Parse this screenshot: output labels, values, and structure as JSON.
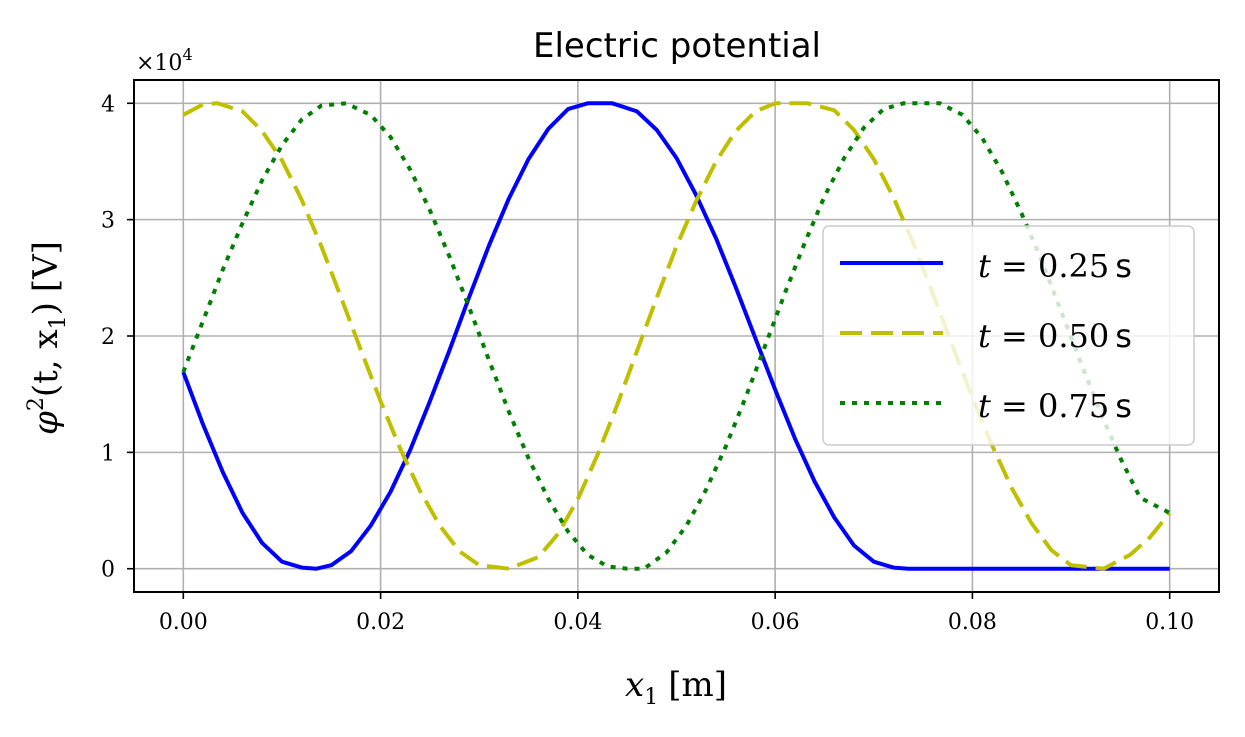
{
  "chart_data": {
    "type": "line",
    "title": "Electric potential",
    "xlabel": {
      "symbol": "x",
      "sub": "1",
      "unit": "[m]"
    },
    "ylabel": {
      "symbol": "φ",
      "sup": "2",
      "args": "(t, x",
      "argsub": "1",
      "argclose": ")",
      "unit": "[V]"
    },
    "xlim": [
      -0.005,
      0.105
    ],
    "ylim": [
      -0.2,
      4.2
    ],
    "y_scale_factor": {
      "base": "×10",
      "exp": "4"
    },
    "x_ticks": [
      0.0,
      0.02,
      0.04,
      0.06,
      0.08,
      0.1
    ],
    "x_tick_labels": [
      "0.00",
      "0.02",
      "0.04",
      "0.06",
      "0.08",
      "0.10"
    ],
    "y_ticks": [
      0,
      1,
      2,
      3,
      4
    ],
    "y_tick_labels": [
      "0",
      "1",
      "2",
      "3",
      "4"
    ],
    "grid": true,
    "legend_position": "center-right",
    "series": [
      {
        "name": "t = 0.25 s",
        "label_var": "t",
        "label_eq": " = 0.25",
        "label_unit": "s",
        "color": "#0000ff",
        "style": "solid",
        "x": [
          0.0,
          0.002,
          0.004,
          0.006,
          0.008,
          0.01,
          0.012,
          0.0135,
          0.015,
          0.017,
          0.019,
          0.021,
          0.023,
          0.025,
          0.027,
          0.029,
          0.031,
          0.033,
          0.035,
          0.037,
          0.039,
          0.041,
          0.0435,
          0.046,
          0.048,
          0.05,
          0.052,
          0.054,
          0.056,
          0.058,
          0.06,
          0.062,
          0.064,
          0.066,
          0.068,
          0.07,
          0.072,
          0.0735,
          0.08,
          0.09,
          0.1
        ],
        "y": [
          1.69,
          1.24,
          0.83,
          0.48,
          0.22,
          0.06,
          0.01,
          0.0,
          0.03,
          0.15,
          0.37,
          0.66,
          1.02,
          1.44,
          1.88,
          2.34,
          2.78,
          3.18,
          3.52,
          3.78,
          3.95,
          4.0,
          4.0,
          3.93,
          3.77,
          3.53,
          3.21,
          2.84,
          2.42,
          1.98,
          1.54,
          1.12,
          0.75,
          0.44,
          0.2,
          0.06,
          0.01,
          0.0,
          0.0,
          0.0,
          0.0
        ]
      },
      {
        "name": "t = 0.50 s",
        "label_var": "t",
        "label_eq": " = 0.50",
        "label_unit": "s",
        "color": "#bfbf00",
        "style": "dashed",
        "x": [
          0.0,
          0.002,
          0.0035,
          0.006,
          0.008,
          0.01,
          0.012,
          0.014,
          0.016,
          0.018,
          0.02,
          0.022,
          0.024,
          0.026,
          0.028,
          0.03,
          0.033,
          0.036,
          0.038,
          0.04,
          0.042,
          0.044,
          0.046,
          0.048,
          0.05,
          0.052,
          0.054,
          0.056,
          0.058,
          0.06,
          0.0633,
          0.066,
          0.068,
          0.07,
          0.072,
          0.074,
          0.076,
          0.078,
          0.08,
          0.082,
          0.084,
          0.086,
          0.088,
          0.09,
          0.0933,
          0.096,
          0.098,
          0.1
        ],
        "y": [
          3.9,
          3.99,
          4.0,
          3.93,
          3.76,
          3.51,
          3.17,
          2.77,
          2.33,
          1.88,
          1.44,
          1.03,
          0.67,
          0.37,
          0.15,
          0.03,
          0.0,
          0.1,
          0.3,
          0.6,
          0.98,
          1.41,
          1.87,
          2.33,
          2.77,
          3.16,
          3.5,
          3.76,
          3.93,
          4.0,
          4.0,
          3.94,
          3.77,
          3.52,
          3.19,
          2.8,
          2.36,
          1.91,
          1.47,
          1.06,
          0.69,
          0.39,
          0.16,
          0.03,
          0.0,
          0.12,
          0.27,
          0.48
        ]
      },
      {
        "name": "t = 0.75 s",
        "label_var": "t",
        "label_eq": " = 0.75",
        "label_unit": "s",
        "color": "#007f00",
        "style": "dotted",
        "x": [
          0.0,
          0.002,
          0.004,
          0.006,
          0.008,
          0.01,
          0.012,
          0.014,
          0.0165,
          0.019,
          0.021,
          0.023,
          0.025,
          0.027,
          0.029,
          0.031,
          0.033,
          0.035,
          0.037,
          0.039,
          0.041,
          0.043,
          0.045,
          0.0467,
          0.049,
          0.051,
          0.053,
          0.055,
          0.057,
          0.059,
          0.061,
          0.063,
          0.065,
          0.067,
          0.069,
          0.071,
          0.073,
          0.0767,
          0.079,
          0.081,
          0.083,
          0.085,
          0.087,
          0.089,
          0.091,
          0.093,
          0.095,
          0.097,
          0.1
        ],
        "y": [
          1.69,
          2.13,
          2.57,
          2.97,
          3.34,
          3.64,
          3.86,
          3.98,
          4.0,
          3.9,
          3.71,
          3.43,
          3.08,
          2.68,
          2.24,
          1.79,
          1.35,
          0.95,
          0.6,
          0.32,
          0.12,
          0.02,
          0.0,
          0.0,
          0.14,
          0.37,
          0.68,
          1.05,
          1.47,
          1.92,
          2.37,
          2.8,
          3.2,
          3.53,
          3.79,
          3.95,
          4.0,
          4.0,
          3.9,
          3.7,
          3.41,
          3.05,
          2.65,
          2.21,
          1.77,
          1.34,
          0.95,
          0.61,
          0.48
        ]
      }
    ]
  }
}
